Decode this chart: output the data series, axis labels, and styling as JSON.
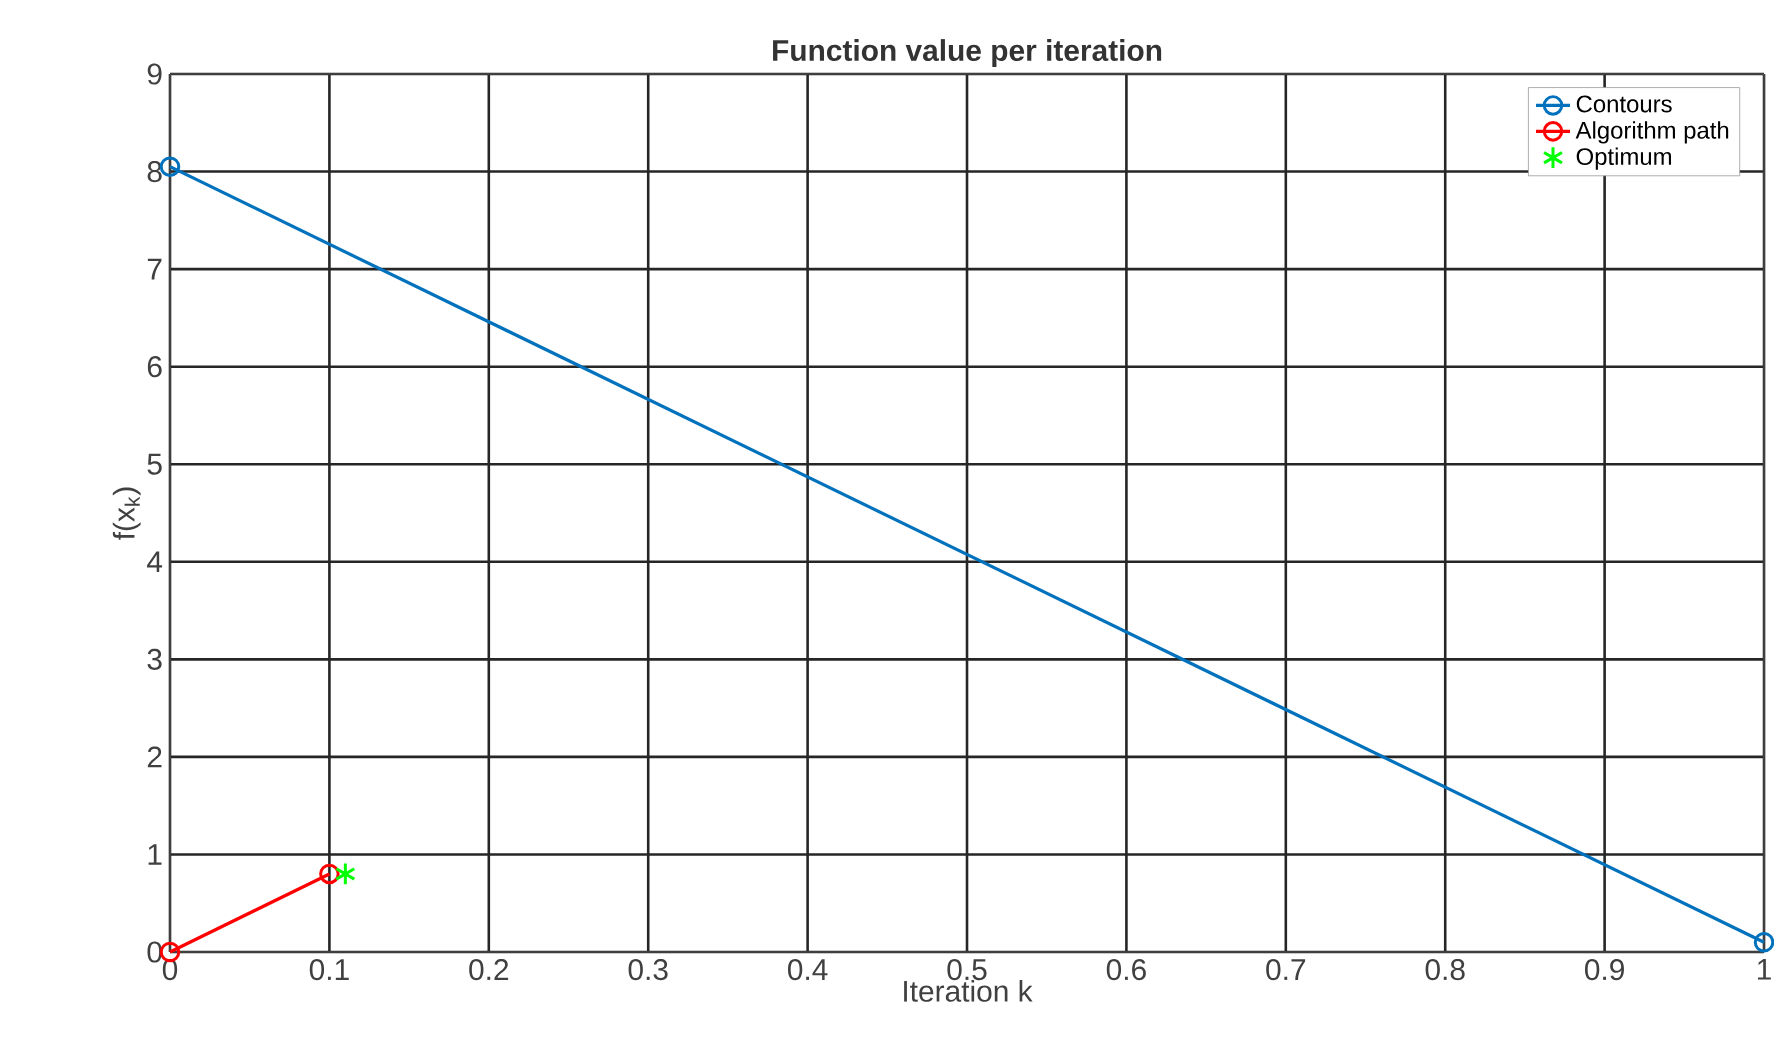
{
  "chart_data": {
    "type": "line",
    "title": "Function value per iteration",
    "xlabel": "Iteration k",
    "ylabel": "f(x$_{k}$)",
    "xlim": [
      0,
      1
    ],
    "xticks": [
      0,
      0.1,
      0.2,
      0.3,
      0.4,
      0.5,
      0.6,
      0.7,
      0.8,
      0.9,
      1
    ],
    "ylim": [
      0,
      9
    ],
    "yticks": [
      0,
      1,
      2,
      3,
      4,
      5,
      6,
      7,
      8,
      9
    ],
    "grid": true,
    "legend": "top right",
    "line_style": "solid",
    "series": [
      {
        "name": "Contours",
        "marker": "circle",
        "color": "#0072bd",
        "x": [
          0,
          1
        ],
        "values": [
          8.05,
          0.1
        ]
      },
      {
        "name": "Algorithm path",
        "marker": "circle",
        "color": "#ff0000",
        "x": [
          0,
          0.1
        ],
        "values": [
          0,
          0.8
        ]
      },
      {
        "name": "Optimum",
        "type": "scatter",
        "marker": "cross",
        "color": "#00ff00",
        "x": [
          0.11
        ],
        "values": [
          0.8
        ]
      }
    ]
  }
}
